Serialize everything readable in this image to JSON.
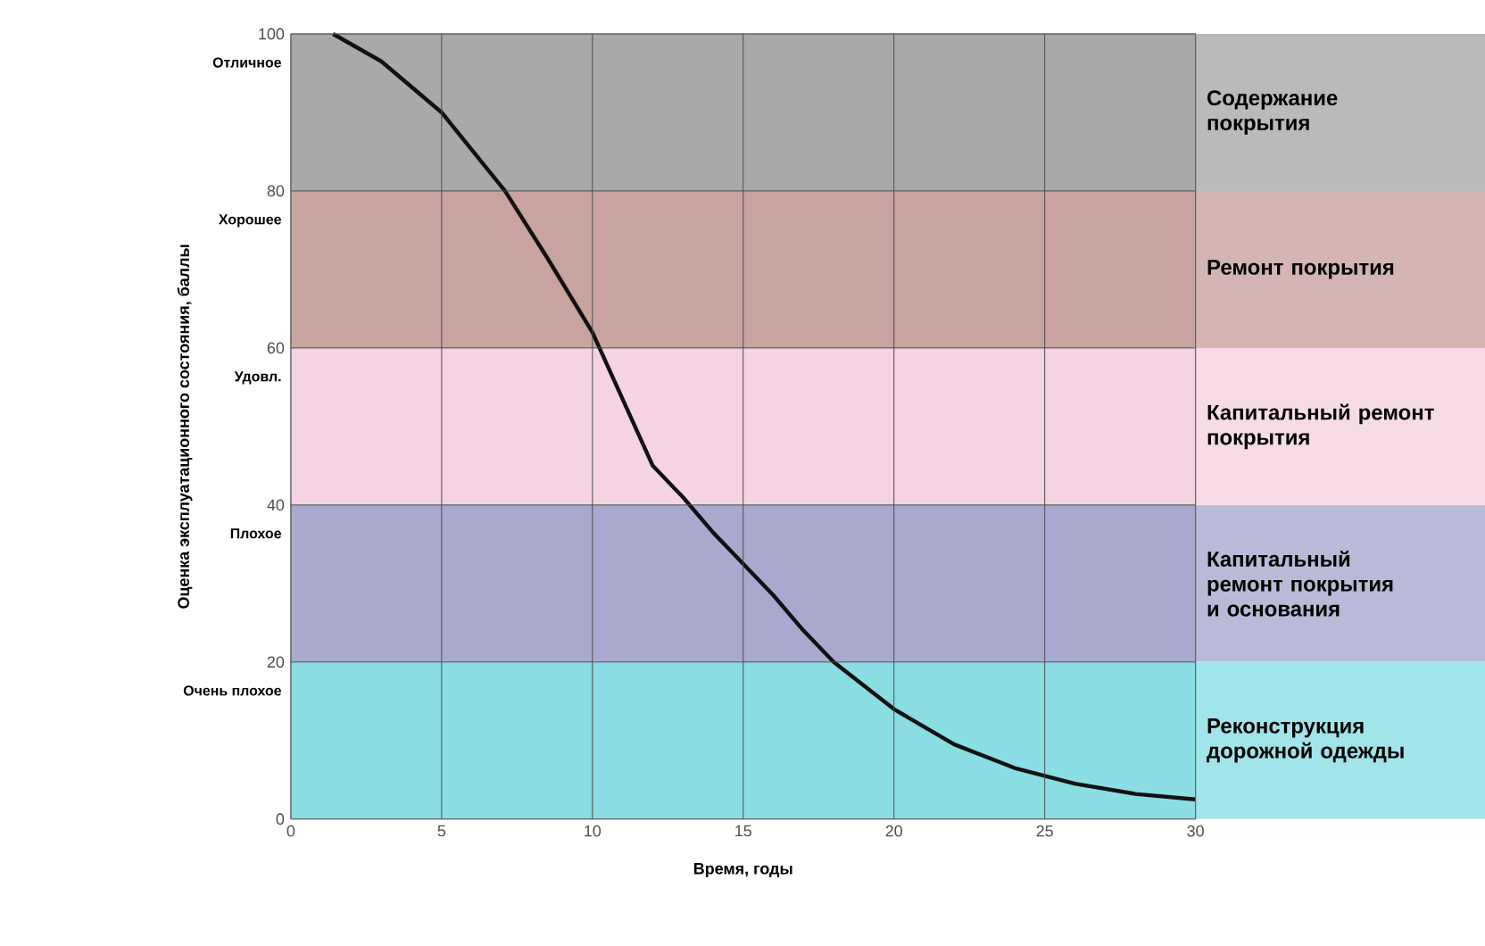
{
  "chart_data": {
    "type": "line",
    "xlabel": "Время, годы",
    "ylabel": "Оценка эксплуатационного состояния, баллы",
    "xlim": [
      0,
      30
    ],
    "ylim": [
      0,
      100
    ],
    "xticks": [
      0,
      5,
      10,
      15,
      20,
      25,
      30
    ],
    "yticks": [
      0,
      20,
      40,
      60,
      80,
      100
    ],
    "grid": true,
    "series": [
      {
        "color": "#111111",
        "x": [
          1.4,
          3,
          5,
          7.1,
          8.5,
          10,
          11,
          12,
          13,
          14,
          15,
          16,
          17,
          18,
          20,
          22,
          24,
          26,
          28,
          30
        ],
        "values": [
          100,
          96.5,
          90,
          80,
          71.5,
          62,
          53.5,
          45,
          41,
          36.5,
          32.5,
          28.5,
          24,
          20,
          14,
          9.5,
          6.5,
          4.5,
          3.2,
          2.5
        ]
      }
    ],
    "bands": [
      {
        "axis": "y",
        "from": 80,
        "to": 100,
        "label": "Содержание покрытия",
        "color": "#a9a9a9"
      },
      {
        "axis": "y",
        "from": 60,
        "to": 80,
        "label": "Ремонт покрытия",
        "color": "#c9a3a0"
      },
      {
        "axis": "y",
        "from": 40,
        "to": 60,
        "label": "Капитальный ремонт покрытия",
        "color": "#f5d3e2"
      },
      {
        "axis": "y",
        "from": 20,
        "to": 40,
        "label": "Капитальный ремонт покрытия и основания",
        "color": "#a9a9cf"
      },
      {
        "axis": "y",
        "from": 0,
        "to": 20,
        "label": "Реконструкция дорожной одежды",
        "color": "#8adde3"
      }
    ],
    "annotations": [
      "Отличное",
      "Хорошее",
      "Удовл.",
      "Плохое",
      "Очень плохое"
    ]
  }
}
